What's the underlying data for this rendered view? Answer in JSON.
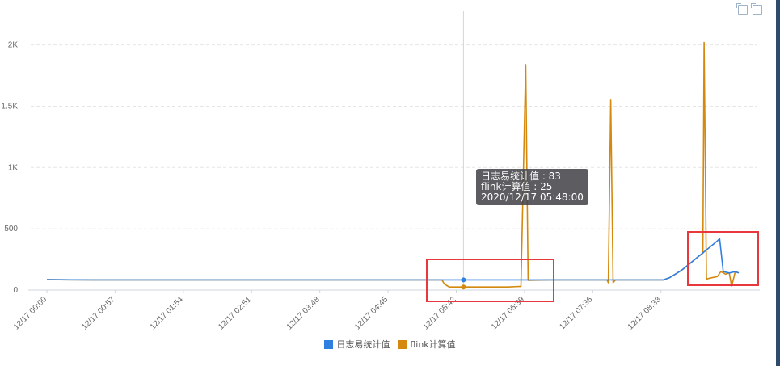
{
  "chart_data": {
    "type": "line",
    "y_ticks": [
      0,
      500,
      1000,
      1500,
      2000
    ],
    "y_tick_labels": [
      "0",
      "500",
      "1K",
      "1.5K",
      "2K"
    ],
    "ylim": [
      0,
      2050
    ],
    "x_ticks": [
      "12/17 00:00",
      "12/17 00:57",
      "12/17 01:54",
      "12/17 02:51",
      "12/17 03:48",
      "12/17 04:45",
      "12/17 05:42",
      "12/17 06:39",
      "12/17 07:36",
      "12/17 08:33"
    ],
    "x_range_minutes": [
      0,
      580
    ],
    "grid": true,
    "legend_position": "bottom",
    "series": [
      {
        "name": "日志易统计值",
        "color": "#2f7fe0",
        "points": [
          [
            0,
            85
          ],
          [
            20,
            84
          ],
          [
            40,
            83
          ],
          [
            60,
            83
          ],
          [
            100,
            83
          ],
          [
            150,
            83
          ],
          [
            200,
            83
          ],
          [
            250,
            83
          ],
          [
            300,
            83
          ],
          [
            340,
            83
          ],
          [
            348,
            83
          ],
          [
            360,
            83
          ],
          [
            380,
            83
          ],
          [
            400,
            83
          ],
          [
            420,
            83
          ],
          [
            450,
            83
          ],
          [
            470,
            83
          ],
          [
            480,
            83
          ],
          [
            500,
            83
          ],
          [
            515,
            83
          ],
          [
            520,
            100
          ],
          [
            525,
            130
          ],
          [
            530,
            160
          ],
          [
            535,
            200
          ],
          [
            540,
            240
          ],
          [
            545,
            280
          ],
          [
            550,
            320
          ],
          [
            555,
            360
          ],
          [
            560,
            400
          ],
          [
            562,
            420
          ],
          [
            565,
            150
          ],
          [
            570,
            140
          ],
          [
            575,
            150
          ],
          [
            578,
            140
          ]
        ]
      },
      {
        "name": "flink计算值",
        "color": "#d4890e",
        "points": [
          [
            0,
            85
          ],
          [
            20,
            84
          ],
          [
            40,
            83
          ],
          [
            60,
            83
          ],
          [
            100,
            83
          ],
          [
            150,
            83
          ],
          [
            200,
            83
          ],
          [
            250,
            83
          ],
          [
            300,
            83
          ],
          [
            330,
            83
          ],
          [
            332,
            50
          ],
          [
            336,
            25
          ],
          [
            345,
            25
          ],
          [
            348,
            25
          ],
          [
            360,
            25
          ],
          [
            375,
            25
          ],
          [
            385,
            25
          ],
          [
            396,
            30
          ],
          [
            400,
            1840
          ],
          [
            402,
            80
          ],
          [
            420,
            83
          ],
          [
            450,
            83
          ],
          [
            468,
            83
          ],
          [
            469,
            60
          ],
          [
            471,
            1550
          ],
          [
            473,
            60
          ],
          [
            475,
            83
          ],
          [
            490,
            83
          ],
          [
            505,
            83
          ],
          [
            515,
            83
          ],
          [
            520,
            100
          ],
          [
            525,
            130
          ],
          [
            530,
            160
          ],
          [
            535,
            200
          ],
          [
            540,
            240
          ],
          [
            545,
            280
          ],
          [
            548,
            300
          ],
          [
            549,
            2020
          ],
          [
            551,
            90
          ],
          [
            555,
            100
          ],
          [
            560,
            110
          ],
          [
            563,
            150
          ],
          [
            567,
            130
          ],
          [
            570,
            140
          ],
          [
            572,
            30
          ],
          [
            575,
            150
          ],
          [
            578,
            140
          ]
        ]
      }
    ],
    "tooltip": {
      "lines": [
        "日志易统计值 : 83",
        "flink计算值 : 25",
        "2020/12/17 05:48:00"
      ],
      "x_minute": 348
    }
  },
  "highlights": {
    "color": "#e8383d",
    "count": 2
  },
  "toolbar": {
    "icons": [
      "zoom-icon",
      "zoom-reset-icon"
    ]
  }
}
